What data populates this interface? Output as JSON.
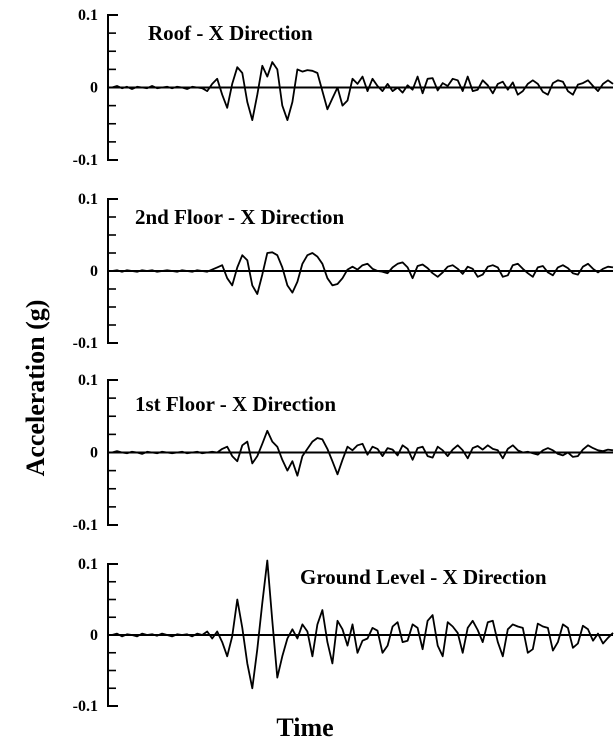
{
  "figure": {
    "ylabel": "Acceleration (g)",
    "xlabel": "Time"
  },
  "chart_data": [
    {
      "type": "line",
      "title": "Roof - X Direction",
      "ylim": [
        -0.1,
        0.1
      ],
      "y_ticks": [
        "0.1",
        "0",
        "-0.1"
      ],
      "x": [
        0,
        0.01,
        0.02,
        0.03,
        0.04,
        0.05,
        0.06,
        0.07,
        0.08,
        0.09,
        0.1,
        0.11,
        0.12,
        0.13,
        0.14,
        0.15,
        0.16,
        0.17,
        0.18,
        0.19,
        0.2,
        0.21,
        0.22,
        0.23,
        0.24,
        0.25,
        0.26,
        0.27,
        0.28,
        0.29,
        0.3,
        0.31,
        0.32,
        0.33,
        0.34,
        0.35,
        0.36,
        0.37,
        0.38,
        0.39,
        0.4,
        0.41,
        0.42,
        0.43,
        0.44,
        0.45,
        0.46,
        0.47,
        0.48,
        0.49,
        0.5,
        0.51,
        0.52,
        0.53,
        0.54,
        0.55,
        0.56,
        0.57,
        0.58,
        0.59,
        0.6,
        0.61,
        0.62,
        0.63,
        0.64,
        0.65,
        0.66,
        0.67,
        0.68,
        0.69,
        0.7,
        0.71,
        0.72,
        0.73,
        0.74,
        0.75,
        0.76,
        0.77,
        0.78,
        0.79,
        0.8,
        0.81,
        0.82,
        0.83,
        0.84,
        0.85,
        0.86,
        0.87,
        0.88,
        0.89,
        0.9,
        0.91,
        0.92,
        0.93,
        0.94,
        0.95,
        0.96,
        0.97,
        0.98,
        0.99,
        1
      ],
      "values": [
        0,
        0.002,
        -0.001,
        0.001,
        -0.002,
        0.001,
        0,
        -0.001,
        0.002,
        -0.001,
        0,
        0.001,
        -0.001,
        0.001,
        0,
        -0.002,
        0.001,
        0,
        -0.001,
        -0.005,
        0.005,
        0.012,
        -0.01,
        -0.028,
        0.005,
        0.028,
        0.02,
        -0.02,
        -0.045,
        -0.01,
        0.03,
        0.015,
        0.035,
        0.025,
        -0.025,
        -0.045,
        -0.02,
        0.025,
        0.022,
        0.024,
        0.023,
        0.02,
        -0.005,
        -0.03,
        -0.015,
        0,
        -0.025,
        -0.018,
        0.012,
        0.005,
        0.015,
        -0.005,
        0.012,
        0.002,
        -0.005,
        0.005,
        -0.005,
        0,
        -0.007,
        0.003,
        -0.003,
        0.015,
        -0.008,
        0.012,
        0.013,
        -0.004,
        0.006,
        0.002,
        0.012,
        0.01,
        -0.005,
        0.015,
        -0.005,
        -0.003,
        0.01,
        0.003,
        -0.008,
        0.005,
        0.008,
        -0.003,
        0.007,
        -0.01,
        -0.005,
        0.005,
        0.01,
        0.005,
        -0.006,
        -0.01,
        0.006,
        0.01,
        0.008,
        -0.005,
        -0.01,
        0.004,
        0.006,
        0.01,
        0.002,
        -0.005,
        0.005,
        0.01,
        0.005
      ]
    },
    {
      "type": "line",
      "title": "2nd Floor - X Direction",
      "ylim": [
        -0.1,
        0.1
      ],
      "y_ticks": [
        "0.1",
        "0",
        "-0.1"
      ],
      "x": [
        0,
        0.01,
        0.02,
        0.03,
        0.04,
        0.05,
        0.06,
        0.07,
        0.08,
        0.09,
        0.1,
        0.11,
        0.12,
        0.13,
        0.14,
        0.15,
        0.16,
        0.17,
        0.18,
        0.19,
        0.2,
        0.21,
        0.22,
        0.23,
        0.24,
        0.25,
        0.26,
        0.27,
        0.28,
        0.29,
        0.3,
        0.31,
        0.32,
        0.33,
        0.34,
        0.35,
        0.36,
        0.37,
        0.38,
        0.39,
        0.4,
        0.41,
        0.42,
        0.43,
        0.44,
        0.45,
        0.46,
        0.47,
        0.48,
        0.49,
        0.5,
        0.51,
        0.52,
        0.53,
        0.54,
        0.55,
        0.56,
        0.57,
        0.58,
        0.59,
        0.6,
        0.61,
        0.62,
        0.63,
        0.64,
        0.65,
        0.66,
        0.67,
        0.68,
        0.69,
        0.7,
        0.71,
        0.72,
        0.73,
        0.74,
        0.75,
        0.76,
        0.77,
        0.78,
        0.79,
        0.8,
        0.81,
        0.82,
        0.83,
        0.84,
        0.85,
        0.86,
        0.87,
        0.88,
        0.89,
        0.9,
        0.91,
        0.92,
        0.93,
        0.94,
        0.95,
        0.96,
        0.97,
        0.98,
        0.99,
        1
      ],
      "values": [
        0,
        0.001,
        -0.001,
        0.001,
        0,
        -0.001,
        0.001,
        0,
        0.001,
        -0.001,
        0,
        0.001,
        0,
        -0.001,
        0.001,
        0,
        -0.001,
        0.001,
        0,
        -0.001,
        0.002,
        0.005,
        0.008,
        -0.01,
        -0.02,
        0.005,
        0.022,
        0.015,
        -0.02,
        -0.032,
        -0.005,
        0.025,
        0.026,
        0.022,
        0.005,
        -0.02,
        -0.03,
        -0.015,
        0.01,
        0.022,
        0.025,
        0.02,
        0.01,
        -0.01,
        -0.02,
        -0.018,
        -0.01,
        0.002,
        0.006,
        0.002,
        0.008,
        0.01,
        0.003,
        0,
        -0.001,
        -0.003,
        0.005,
        0.01,
        0.012,
        0.005,
        -0.01,
        0.007,
        0.009,
        0.004,
        -0.003,
        -0.008,
        -0.002,
        0.006,
        0.008,
        0.003,
        -0.004,
        0.006,
        0.003,
        -0.008,
        -0.005,
        0.006,
        0.008,
        0.005,
        -0.008,
        -0.006,
        0.008,
        0.01,
        0.003,
        -0.003,
        -0.008,
        0.005,
        0.007,
        -0.002,
        -0.006,
        0.005,
        0.008,
        0.004,
        -0.003,
        -0.005,
        0.006,
        0.01,
        0.003,
        -0.002,
        0.003,
        0.006,
        0.005
      ]
    },
    {
      "type": "line",
      "title": "1st Floor - X Direction",
      "ylim": [
        -0.1,
        0.1
      ],
      "y_ticks": [
        "0.1",
        "0",
        "-0.1"
      ],
      "x": [
        0,
        0.01,
        0.02,
        0.03,
        0.04,
        0.05,
        0.06,
        0.07,
        0.08,
        0.09,
        0.1,
        0.11,
        0.12,
        0.13,
        0.14,
        0.15,
        0.16,
        0.17,
        0.18,
        0.19,
        0.2,
        0.21,
        0.22,
        0.23,
        0.24,
        0.25,
        0.26,
        0.27,
        0.28,
        0.29,
        0.3,
        0.31,
        0.32,
        0.33,
        0.34,
        0.35,
        0.36,
        0.37,
        0.38,
        0.39,
        0.4,
        0.41,
        0.42,
        0.43,
        0.44,
        0.45,
        0.46,
        0.47,
        0.48,
        0.49,
        0.5,
        0.51,
        0.52,
        0.53,
        0.54,
        0.55,
        0.56,
        0.57,
        0.58,
        0.59,
        0.6,
        0.61,
        0.62,
        0.63,
        0.64,
        0.65,
        0.66,
        0.67,
        0.68,
        0.69,
        0.7,
        0.71,
        0.72,
        0.73,
        0.74,
        0.75,
        0.76,
        0.77,
        0.78,
        0.79,
        0.8,
        0.81,
        0.82,
        0.83,
        0.84,
        0.85,
        0.86,
        0.87,
        0.88,
        0.89,
        0.9,
        0.91,
        0.92,
        0.93,
        0.94,
        0.95,
        0.96,
        0.97,
        0.98,
        0.99,
        1
      ],
      "values": [
        0,
        0.002,
        0,
        -0.001,
        0.001,
        0,
        -0.002,
        0.001,
        0,
        -0.001,
        0.001,
        0,
        -0.001,
        0,
        0.001,
        -0.001,
        0,
        0.001,
        -0.001,
        0,
        0.001,
        0,
        0.005,
        0.008,
        -0.005,
        -0.012,
        0.01,
        0.015,
        -0.015,
        -0.005,
        0.012,
        0.03,
        0.015,
        0.008,
        -0.01,
        -0.025,
        -0.012,
        -0.032,
        -0.005,
        0.005,
        0.015,
        0.02,
        0.018,
        0.005,
        -0.012,
        -0.03,
        -0.01,
        0.008,
        0.003,
        0.01,
        0.012,
        -0.003,
        0.008,
        0.005,
        -0.005,
        0.006,
        0.004,
        -0.004,
        0.01,
        0.005,
        -0.01,
        0.006,
        0.008,
        -0.005,
        -0.007,
        0.008,
        0.003,
        -0.005,
        0.004,
        0.01,
        0.003,
        -0.008,
        0.006,
        0.009,
        0.004,
        0.01,
        0.005,
        0.003,
        -0.008,
        0.005,
        0.01,
        0.003,
        0,
        0.001,
        -0.001,
        -0.003,
        0.003,
        0.006,
        0.003,
        -0.002,
        -0.004,
        0,
        -0.006,
        -0.005,
        0.004,
        0.01,
        0.006,
        0.003,
        0.002,
        0.004,
        0.003
      ]
    },
    {
      "type": "line",
      "title": "Ground Level - X Direction",
      "ylim": [
        -0.1,
        0.1
      ],
      "y_ticks": [
        "0.1",
        "0",
        "-0.1"
      ],
      "x": [
        0,
        0.01,
        0.02,
        0.03,
        0.04,
        0.05,
        0.06,
        0.07,
        0.08,
        0.09,
        0.1,
        0.11,
        0.12,
        0.13,
        0.14,
        0.15,
        0.16,
        0.17,
        0.18,
        0.19,
        0.2,
        0.21,
        0.22,
        0.23,
        0.24,
        0.25,
        0.26,
        0.27,
        0.28,
        0.29,
        0.3,
        0.31,
        0.32,
        0.33,
        0.34,
        0.35,
        0.36,
        0.37,
        0.38,
        0.39,
        0.4,
        0.41,
        0.42,
        0.43,
        0.44,
        0.45,
        0.46,
        0.47,
        0.48,
        0.49,
        0.5,
        0.51,
        0.52,
        0.53,
        0.54,
        0.55,
        0.56,
        0.57,
        0.58,
        0.59,
        0.6,
        0.61,
        0.62,
        0.63,
        0.64,
        0.65,
        0.66,
        0.67,
        0.68,
        0.69,
        0.7,
        0.71,
        0.72,
        0.73,
        0.74,
        0.75,
        0.76,
        0.77,
        0.78,
        0.79,
        0.8,
        0.81,
        0.82,
        0.83,
        0.84,
        0.85,
        0.86,
        0.87,
        0.88,
        0.89,
        0.9,
        0.91,
        0.92,
        0.93,
        0.94,
        0.95,
        0.96,
        0.97,
        0.98,
        0.99,
        1
      ],
      "values": [
        0,
        0.002,
        -0.002,
        0.001,
        0,
        -0.002,
        0.002,
        0,
        0.001,
        -0.001,
        0.002,
        0,
        -0.002,
        0.001,
        0,
        0.001,
        -0.002,
        0.002,
        0,
        0.005,
        -0.005,
        0.005,
        -0.01,
        -0.03,
        -0.002,
        0.05,
        0.01,
        -0.04,
        -0.075,
        -0.02,
        0.045,
        0.105,
        0.02,
        -0.06,
        -0.03,
        -0.005,
        0.008,
        -0.005,
        0.015,
        0.005,
        -0.03,
        0.015,
        0.035,
        -0.01,
        -0.04,
        0.02,
        0.008,
        -0.015,
        0.015,
        -0.025,
        -0.008,
        -0.005,
        0.01,
        0.006,
        -0.025,
        -0.015,
        0.012,
        0.018,
        -0.01,
        -0.008,
        0.015,
        0.01,
        -0.02,
        0.02,
        0.028,
        -0.015,
        -0.03,
        0.018,
        0.012,
        0.003,
        -0.025,
        0.01,
        0.02,
        0.007,
        -0.01,
        0.018,
        0.02,
        -0.01,
        -0.03,
        0.008,
        0.015,
        0.012,
        0.01,
        -0.025,
        -0.02,
        0.016,
        0.012,
        0.01,
        -0.022,
        -0.01,
        0.015,
        0.01,
        -0.018,
        -0.012,
        0.013,
        0.008,
        -0.008,
        0.002,
        -0.012,
        -0.004,
        0.003
      ]
    }
  ]
}
